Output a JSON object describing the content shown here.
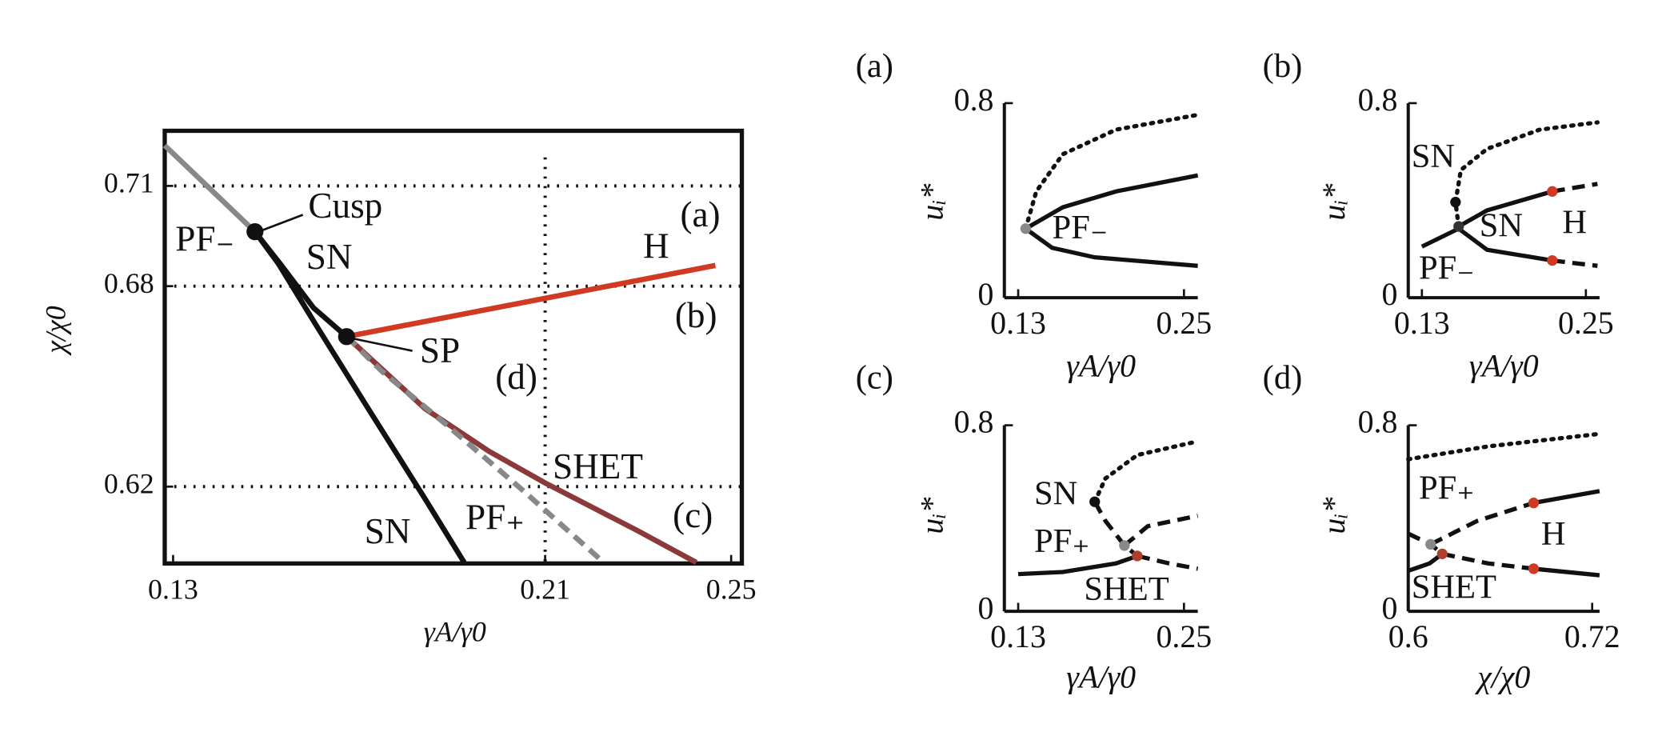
{
  "chart_data": [
    {
      "type": "line",
      "xlabel": "γA/γ0",
      "ylabel": "χ/χ0",
      "xlim": [
        0.1282,
        0.2523
      ],
      "ylim": [
        0.597,
        0.7265
      ],
      "xticks": [
        0.13,
        0.21,
        0.25
      ],
      "yticks": [
        0.62,
        0.68,
        0.71
      ],
      "reference_lines": {
        "x": [
          0.21
        ],
        "y": [
          0.71,
          0.68,
          0.62
        ]
      },
      "series": [
        {
          "color": "#888888",
          "style": "solid",
          "x": [
            0.1282,
            0.1385,
            0.1476,
            0.1533
          ],
          "values": [
            0.7221,
            0.7084,
            0.6963,
            0.6862
          ]
        },
        {
          "color": "#111111",
          "style": "solid",
          "x": [
            0.1476,
            0.1533,
            0.1602,
            0.1673
          ],
          "values": [
            0.6963,
            0.6862,
            0.6735,
            0.6649
          ]
        },
        {
          "color": "#111111",
          "style": "solid",
          "x": [
            0.1476,
            0.1526,
            0.1613,
            0.1727,
            0.1842,
            0.1926
          ],
          "values": [
            0.6963,
            0.6868,
            0.6671,
            0.6417,
            0.6163,
            0.5973
          ]
        },
        {
          "color": "#d03a22",
          "style": "solid",
          "x": [
            0.1673,
            0.2466
          ],
          "values": [
            0.6649,
            0.6862
          ]
        },
        {
          "color": "#8b3a3a",
          "style": "solid",
          "x": [
            0.1673,
            0.1842,
            0.1979,
            0.21,
            0.2299,
            0.2425
          ],
          "values": [
            0.6649,
            0.6433,
            0.6306,
            0.6211,
            0.6068,
            0.5973
          ]
        },
        {
          "color": "#888888",
          "style": "dashed",
          "x": [
            0.1673,
            0.175,
            0.1887,
            0.2047,
            0.2226
          ],
          "values": [
            0.6649,
            0.6544,
            0.6386,
            0.6195,
            0.5973
          ]
        }
      ],
      "points": [
        {
          "color": "#111111",
          "x": 0.1476,
          "y": 0.6963
        },
        {
          "color": "#111111",
          "x": 0.1673,
          "y": 0.6649
        }
      ],
      "annotations": [
        {
          "text": "Cusp",
          "color": "#111111"
        },
        {
          "text": "SN",
          "color": "#111111"
        },
        {
          "text": "SP",
          "color": "#111111"
        },
        {
          "text": "PF₋",
          "color": "#888888"
        },
        {
          "text": "H",
          "color": "#d03a22"
        },
        {
          "text": "SHET",
          "color": "#8b3a3a"
        },
        {
          "text": "PF₊",
          "color": "#888888"
        },
        {
          "text": "SN",
          "color": "#111111"
        },
        {
          "text": "(a)",
          "color": "#111111"
        },
        {
          "text": "(b)",
          "color": "#111111"
        },
        {
          "text": "(c)",
          "color": "#111111"
        },
        {
          "text": "(d)",
          "color": "#111111"
        }
      ]
    },
    {
      "type": "line",
      "panel_label": "(a)",
      "xlabel": "γA/γ0",
      "ylabel": "uᵢ*",
      "xlim": [
        0.12,
        0.26
      ],
      "ylim": [
        0,
        0.8
      ],
      "xticks": [
        0.13,
        0.25
      ],
      "yticks": [
        0,
        0.8
      ],
      "series": [
        {
          "color": "#111111",
          "style": "solid",
          "x": [
            0.1354,
            0.1623,
            0.2008,
            0.26
          ],
          "values": [
            0.284,
            0.372,
            0.437,
            0.503
          ]
        },
        {
          "color": "#111111",
          "style": "solid",
          "x": [
            0.1354,
            0.1546,
            0.1854,
            0.26
          ],
          "values": [
            0.284,
            0.205,
            0.166,
            0.131
          ]
        },
        {
          "color": "#111111",
          "style": "dotted",
          "x": [
            0.1354,
            0.1431,
            0.1623,
            0.2008,
            0.26
          ],
          "values": [
            0.284,
            0.437,
            0.59,
            0.691,
            0.752
          ]
        }
      ],
      "points": [
        {
          "color": "#888888",
          "x": 0.1354,
          "y": 0.284
        }
      ],
      "annotations": [
        {
          "text": "PF₋",
          "color": "#888888"
        }
      ]
    },
    {
      "type": "line",
      "panel_label": "(b)",
      "xlabel": "γA/γ0",
      "ylabel": "uᵢ*",
      "xlim": [
        0.12,
        0.26
      ],
      "ylim": [
        0,
        0.8
      ],
      "xticks": [
        0.13,
        0.25
      ],
      "yticks": [
        0,
        0.8
      ],
      "series": [
        {
          "color": "#111111",
          "style": "solid",
          "x": [
            0.1569,
            0.1777,
            0.2254
          ],
          "values": [
            0.293,
            0.359,
            0.437
          ]
        },
        {
          "color": "#111111",
          "style": "dashed",
          "x": [
            0.2254,
            0.2585
          ],
          "values": [
            0.437,
            0.468
          ]
        },
        {
          "color": "#111111",
          "style": "solid",
          "x": [
            0.13,
            0.1569,
            0.1777,
            0.2254
          ],
          "values": [
            0.21,
            0.284,
            0.197,
            0.153
          ]
        },
        {
          "color": "#111111",
          "style": "dashed",
          "x": [
            0.2254,
            0.2585
          ],
          "values": [
            0.153,
            0.131
          ]
        },
        {
          "color": "#111111",
          "style": "dotted",
          "x": [
            0.1569,
            0.1546,
            0.1585,
            0.1777,
            0.2162,
            0.2585
          ],
          "values": [
            0.293,
            0.393,
            0.525,
            0.612,
            0.691,
            0.721
          ]
        }
      ],
      "points": [
        {
          "color": "#111111",
          "x": 0.1546,
          "y": 0.393
        },
        {
          "color": "#333333",
          "x": 0.1569,
          "y": 0.293
        },
        {
          "color": "#d03a22",
          "x": 0.2254,
          "y": 0.437
        },
        {
          "color": "#d03a22",
          "x": 0.2254,
          "y": 0.153
        }
      ],
      "annotations": [
        {
          "text": "SN",
          "color": "#111111"
        },
        {
          "text": "SN",
          "color": "#111111"
        },
        {
          "text": "H",
          "color": "#d03a22"
        },
        {
          "text": "PF₋",
          "color": "#888888"
        }
      ]
    },
    {
      "type": "line",
      "panel_label": "(c)",
      "xlabel": "γA/γ0",
      "ylabel": "uᵢ*",
      "xlim": [
        0.12,
        0.26
      ],
      "ylim": [
        0,
        0.8
      ],
      "xticks": [
        0.13,
        0.25
      ],
      "yticks": [
        0,
        0.8
      ],
      "series": [
        {
          "color": "#111111",
          "style": "solid",
          "x": [
            0.13,
            0.1623,
            0.2008,
            0.2162
          ],
          "values": [
            0.16,
            0.169,
            0.206,
            0.238
          ]
        },
        {
          "color": "#111111",
          "style": "dashed",
          "x": [
            0.2162,
            0.2392,
            0.26
          ],
          "values": [
            0.238,
            0.206,
            0.183
          ]
        },
        {
          "color": "#111111",
          "style": "dashed",
          "x": [
            0.1854,
            0.1931,
            0.2069,
            0.2162
          ],
          "values": [
            0.471,
            0.389,
            0.283,
            0.238
          ]
        },
        {
          "color": "#111111",
          "style": "dashed",
          "x": [
            0.2069,
            0.2238,
            0.26
          ],
          "values": [
            0.283,
            0.366,
            0.411
          ]
        },
        {
          "color": "#111111",
          "style": "dotted",
          "x": [
            0.1854,
            0.1931,
            0.2162,
            0.26
          ],
          "values": [
            0.471,
            0.571,
            0.672,
            0.731
          ]
        }
      ],
      "points": [
        {
          "color": "#111111",
          "x": 0.1854,
          "y": 0.471
        },
        {
          "color": "#888888",
          "x": 0.2069,
          "y": 0.283
        },
        {
          "color": "#b0402e",
          "x": 0.2162,
          "y": 0.238
        }
      ],
      "annotations": [
        {
          "text": "SN",
          "color": "#111111"
        },
        {
          "text": "PF₊",
          "color": "#888888"
        },
        {
          "text": "SHET",
          "color": "#8b3a3a"
        }
      ]
    },
    {
      "type": "line",
      "panel_label": "(d)",
      "xlabel": "χ/χ0",
      "ylabel": "uᵢ*",
      "xlim": [
        0.6,
        0.7248
      ],
      "ylim": [
        0,
        0.8
      ],
      "xticks": [
        0.6,
        0.72
      ],
      "yticks": [
        0,
        0.8
      ],
      "series": [
        {
          "color": "#111111",
          "style": "dotted",
          "x": [
            0.6,
            0.652,
            0.7248
          ],
          "values": [
            0.654,
            0.709,
            0.763
          ]
        },
        {
          "color": "#111111",
          "style": "solid",
          "x": [
            0.6818,
            0.7248
          ],
          "values": [
            0.466,
            0.517
          ]
        },
        {
          "color": "#111111",
          "style": "dashed",
          "x": [
            0.6146,
            0.6451,
            0.6818
          ],
          "values": [
            0.288,
            0.389,
            0.466
          ]
        },
        {
          "color": "#111111",
          "style": "solid",
          "x": [
            0.6,
            0.6139,
            0.6222
          ],
          "values": [
            0.174,
            0.206,
            0.247
          ]
        },
        {
          "color": "#111111",
          "style": "dashed",
          "x": [
            0.6,
            0.6146,
            0.6222
          ],
          "values": [
            0.334,
            0.288,
            0.247
          ]
        },
        {
          "color": "#111111",
          "style": "dashed",
          "x": [
            0.6222,
            0.652,
            0.6818
          ],
          "values": [
            0.247,
            0.206,
            0.183
          ]
        },
        {
          "color": "#111111",
          "style": "solid",
          "x": [
            0.6818,
            0.7248
          ],
          "values": [
            0.183,
            0.155
          ]
        }
      ],
      "points": [
        {
          "color": "#888888",
          "x": 0.6146,
          "y": 0.288
        },
        {
          "color": "#b0402e",
          "x": 0.6222,
          "y": 0.247
        },
        {
          "color": "#d03a22",
          "x": 0.6818,
          "y": 0.466
        },
        {
          "color": "#d03a22",
          "x": 0.6818,
          "y": 0.183
        }
      ],
      "annotations": [
        {
          "text": "PF₊",
          "color": "#888888"
        },
        {
          "text": "H",
          "color": "#d03a22"
        },
        {
          "text": "SHET",
          "color": "#8b3a3a"
        }
      ]
    }
  ]
}
